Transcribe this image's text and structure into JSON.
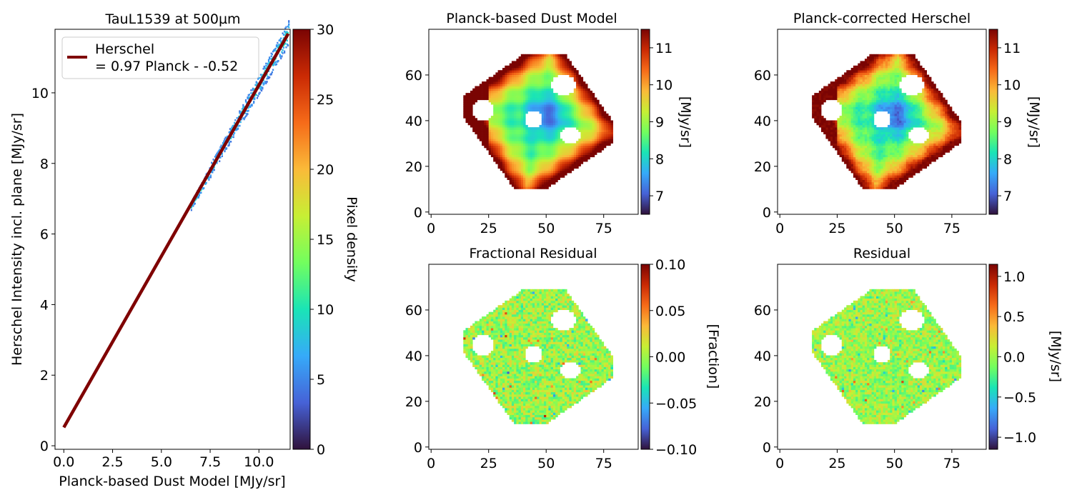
{
  "colormap": [
    "#30123b",
    "#4662d7",
    "#36aaf9",
    "#1ae4b6",
    "#72fe5e",
    "#c7ef34",
    "#faba39",
    "#f66b19",
    "#ca2a04",
    "#7a0403"
  ],
  "chart_data": [
    {
      "type": "scatter",
      "title": "TauL1539 at 500µm",
      "xlabel": "Planck-based Dust Model [MJy/sr]",
      "ylabel": "Herschel Intensity incl. plane [MJy/sr]",
      "xlim": [
        -0.45,
        11.6
      ],
      "ylim": [
        -0.1,
        11.8
      ],
      "xticks": [
        "0.0",
        "2.5",
        "5.0",
        "7.5",
        "10.0"
      ],
      "xtick_values": [
        0,
        2.5,
        5,
        7.5,
        10
      ],
      "yticks": [
        "0",
        "2",
        "4",
        "6",
        "8",
        "10"
      ],
      "ytick_values": [
        0,
        2,
        4,
        6,
        8,
        10
      ],
      "fit": {
        "slope": 0.97,
        "intercept": -0.52,
        "x_range": [
          0,
          11.5
        ],
        "color": "#7f0000",
        "legend_line1": "Herschel",
        "legend_line2": "= 0.97 Planck - -0.52"
      },
      "density_cloud": {
        "x_range": [
          6.5,
          11.5
        ],
        "note": "2D histogram of pixels along the fit line"
      },
      "colorbar": {
        "label": "Pixel density",
        "ticks": [
          "0",
          "5",
          "10",
          "15",
          "20",
          "25",
          "30"
        ],
        "tick_values": [
          0,
          5,
          10,
          15,
          20,
          25,
          30
        ],
        "range": [
          0,
          30
        ]
      }
    },
    {
      "type": "heatmap",
      "title": "Planck-based Dust Model",
      "map": "model",
      "xticks": [
        "0",
        "25",
        "50",
        "75"
      ],
      "xtick_values": [
        0,
        25,
        50,
        75
      ],
      "yticks": [
        "0",
        "20",
        "40",
        "60"
      ],
      "ytick_values": [
        0,
        20,
        40,
        60
      ],
      "xlim": [
        -1,
        90
      ],
      "ylim": [
        -1,
        80
      ],
      "colorbar": {
        "label": "[MJy/sr]",
        "ticks": [
          "7",
          "8",
          "9",
          "10",
          "11"
        ],
        "tick_values": [
          7,
          8,
          9,
          10,
          11
        ],
        "range": [
          6.5,
          11.5
        ]
      }
    },
    {
      "type": "heatmap",
      "title": "Planck-corrected Herschel",
      "map": "herschel",
      "xticks": [
        "0",
        "25",
        "50",
        "75"
      ],
      "xtick_values": [
        0,
        25,
        50,
        75
      ],
      "yticks": [
        "0",
        "20",
        "40",
        "60"
      ],
      "ytick_values": [
        0,
        20,
        40,
        60
      ],
      "xlim": [
        -1,
        90
      ],
      "ylim": [
        -1,
        80
      ],
      "colorbar": {
        "label": "[MJy/sr]",
        "ticks": [
          "7",
          "8",
          "9",
          "10",
          "11"
        ],
        "tick_values": [
          7,
          8,
          9,
          10,
          11
        ],
        "range": [
          6.5,
          11.5
        ]
      }
    },
    {
      "type": "heatmap",
      "title": "Fractional Residual",
      "map": "fraction",
      "xticks": [
        "0",
        "25",
        "50",
        "75"
      ],
      "xtick_values": [
        0,
        25,
        50,
        75
      ],
      "yticks": [
        "0",
        "20",
        "40",
        "60"
      ],
      "ytick_values": [
        0,
        20,
        40,
        60
      ],
      "xlim": [
        -1,
        90
      ],
      "ylim": [
        -1,
        80
      ],
      "colorbar": {
        "label": "[Fraction]",
        "ticks": [
          "−0.10",
          "−0.05",
          "0.00",
          "0.05",
          "0.10"
        ],
        "tick_values": [
          -0.1,
          -0.05,
          0,
          0.05,
          0.1
        ],
        "range": [
          -0.1,
          0.1
        ]
      }
    },
    {
      "type": "heatmap",
      "title": "Residual",
      "map": "residual",
      "xticks": [
        "0",
        "25",
        "50",
        "75"
      ],
      "xtick_values": [
        0,
        25,
        50,
        75
      ],
      "yticks": [
        "0",
        "20",
        "40",
        "60"
      ],
      "ytick_values": [
        0,
        20,
        40,
        60
      ],
      "xlim": [
        -1,
        90
      ],
      "ylim": [
        -1,
        80
      ],
      "colorbar": {
        "label": "[MJy/sr]",
        "ticks": [
          "−1.0",
          "−0.5",
          "0.0",
          "0.5",
          "1.0"
        ],
        "tick_values": [
          -1,
          -0.5,
          0,
          0.5,
          1
        ],
        "range": [
          -1.15,
          1.15
        ]
      }
    }
  ]
}
